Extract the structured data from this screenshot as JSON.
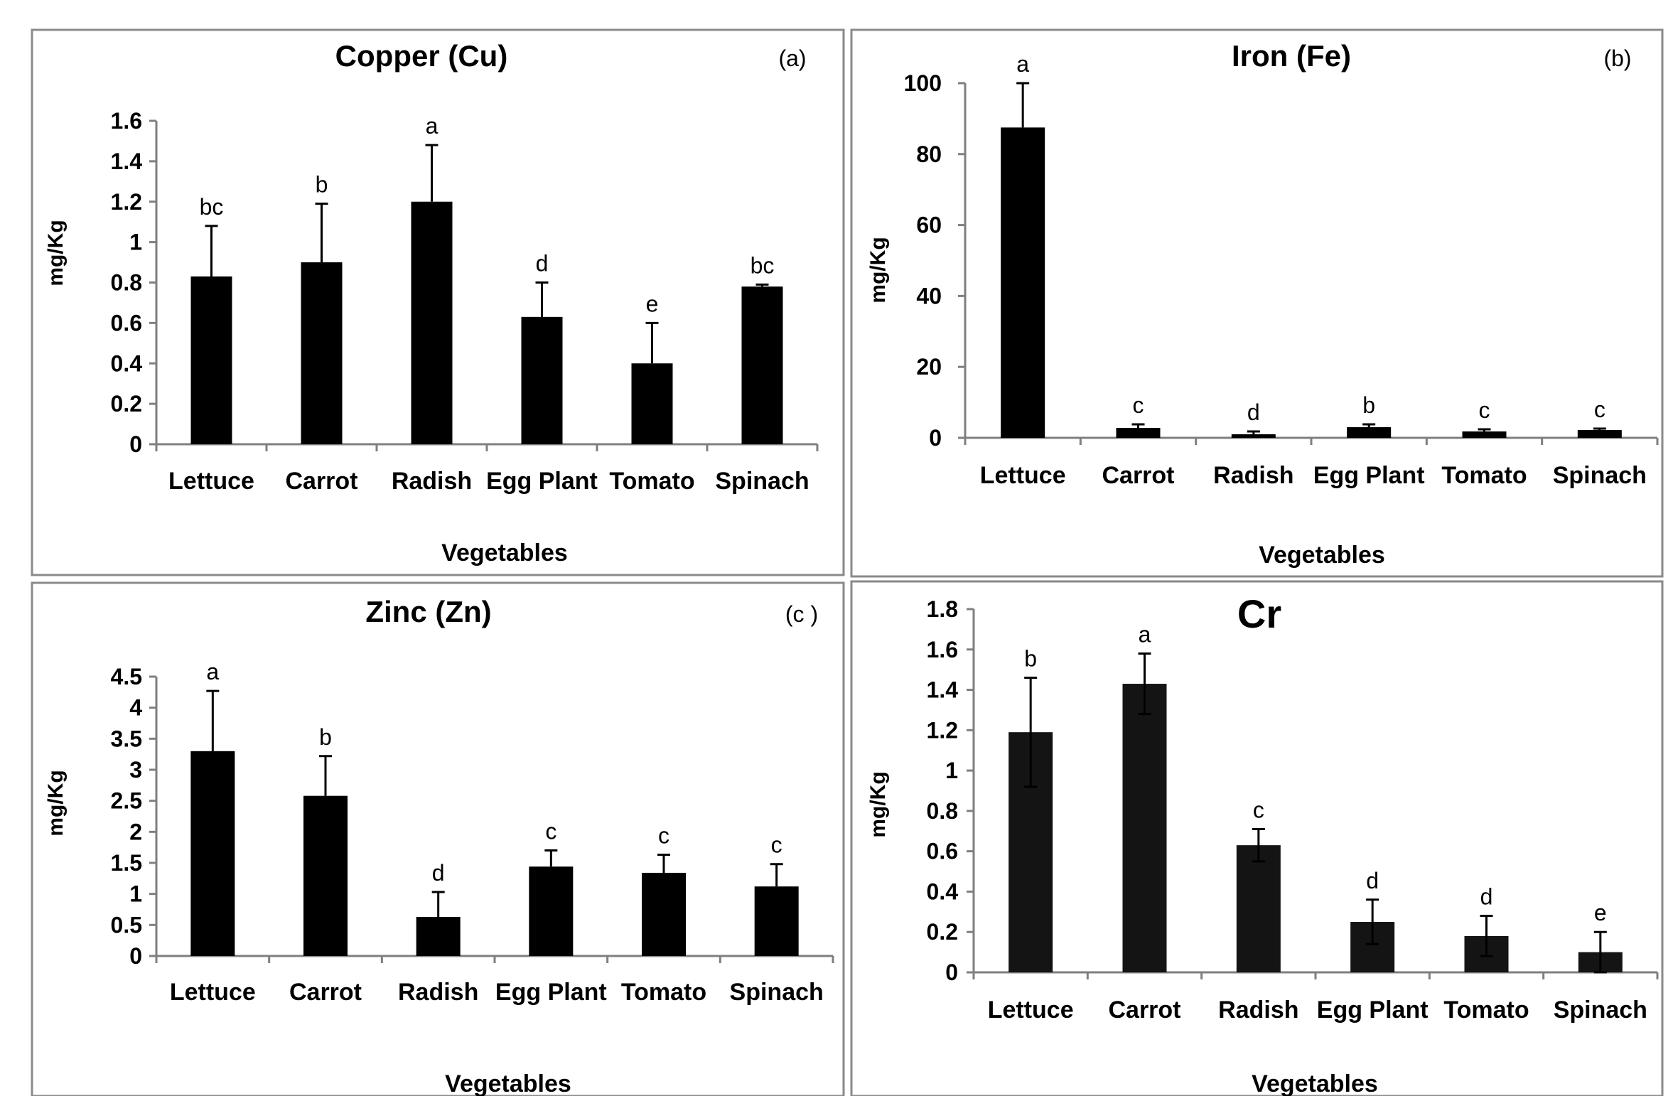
{
  "figure": {
    "panel_frame_color": "#8a8a8a",
    "bar_color": "#000000",
    "bar_color_cr": "#141414"
  },
  "chart_data": [
    {
      "type": "bar",
      "title": "Copper (Cu)",
      "panel_label": "(a)",
      "xlabel": "Vegetables",
      "ylabel": "mg/Kg",
      "ylim": [
        0,
        1.6
      ],
      "yticks": [
        "0",
        "0.2",
        "0.4",
        "0.6",
        "0.8",
        "1",
        "1.2",
        "1.4",
        "1.6"
      ],
      "categories": [
        "Lettuce",
        "Carrot",
        "Radish",
        "Egg Plant",
        "Tomato",
        "Spinach"
      ],
      "values": [
        0.83,
        0.9,
        1.2,
        0.63,
        0.4,
        0.78
      ],
      "error_upper": [
        1.08,
        1.19,
        1.48,
        0.8,
        0.6,
        0.79
      ],
      "significance": [
        "bc",
        "b",
        "a",
        "d",
        "e",
        "bc"
      ]
    },
    {
      "type": "bar",
      "title": "Iron (Fe)",
      "panel_label": "(b)",
      "xlabel": "Vegetables",
      "ylabel": "mg/Kg",
      "ylim": [
        0,
        100
      ],
      "yticks": [
        "0",
        "20",
        "40",
        "60",
        "80",
        "100"
      ],
      "categories": [
        "Lettuce",
        "Carrot",
        "Radish",
        "Egg Plant",
        "Tomato",
        "Spinach"
      ],
      "values": [
        87.5,
        2.8,
        1.0,
        3.0,
        1.8,
        2.2
      ],
      "error_upper": [
        100,
        3.8,
        1.8,
        3.8,
        2.4,
        2.6
      ],
      "significance": [
        "a",
        "c",
        "d",
        "b",
        "c",
        "c"
      ]
    },
    {
      "type": "bar",
      "title": "Zinc (Zn)",
      "panel_label": "(c )",
      "xlabel": "Vegetables",
      "ylabel": "mg/Kg",
      "ylim": [
        0,
        4.5
      ],
      "yticks": [
        "0",
        "0.5",
        "1",
        "1.5",
        "2",
        "2.5",
        "3",
        "3.5",
        "4",
        "4.5"
      ],
      "categories": [
        "Lettuce",
        "Carrot",
        "Radish",
        "Egg Plant",
        "Tomato",
        "Spinach"
      ],
      "values": [
        3.3,
        2.58,
        0.63,
        1.44,
        1.34,
        1.12
      ],
      "error_upper": [
        4.27,
        3.22,
        1.03,
        1.7,
        1.63,
        1.48
      ],
      "significance": [
        "a",
        "b",
        "d",
        "c",
        "c",
        "c"
      ]
    },
    {
      "type": "bar",
      "title": "Cr",
      "panel_label": "",
      "xlabel": "Vegetables",
      "ylabel": "mg/Kg",
      "ylim": [
        0,
        1.8
      ],
      "yticks": [
        "0",
        "0.2",
        "0.4",
        "0.6",
        "0.8",
        "1",
        "1.2",
        "1.4",
        "1.6",
        "1.8"
      ],
      "categories": [
        "Lettuce",
        "Carrot",
        "Radish",
        "Egg Plant",
        "Tomato",
        "Spinach"
      ],
      "values": [
        1.19,
        1.43,
        0.63,
        0.25,
        0.18,
        0.1
      ],
      "error_upper": [
        1.46,
        1.58,
        0.71,
        0.36,
        0.28,
        0.2
      ],
      "error_lower": [
        0.92,
        1.28,
        0.55,
        0.14,
        0.08,
        0.0
      ],
      "significance": [
        "b",
        "a",
        "c",
        "d",
        "d",
        "e"
      ]
    }
  ]
}
